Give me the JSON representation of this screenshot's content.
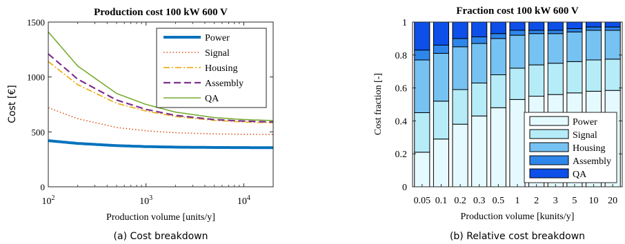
{
  "chart_data": [
    {
      "type": "line",
      "title": "Production cost 100 kW 600 V",
      "xlabel": "Production volume [units/y]",
      "ylabel": "Cost [€]",
      "xscale": "log",
      "xlim": [
        100,
        20000
      ],
      "ylim": [
        0,
        1500
      ],
      "xticks": [
        100,
        1000,
        10000
      ],
      "xtick_labels": [
        {
          "base": "10",
          "exp": "2"
        },
        {
          "base": "10",
          "exp": "3"
        },
        {
          "base": "10",
          "exp": "4"
        }
      ],
      "yticks": [
        0,
        500,
        1000,
        1500
      ],
      "ytick_labels": [
        "0",
        "500",
        "1000",
        "1500"
      ],
      "legend_position": "top-right",
      "caption": "(a) Cost breakdown",
      "series": [
        {
          "name": "Power",
          "color": "#0072BD",
          "style": "solid-thick",
          "x": [
            100,
            200,
            500,
            1000,
            2000,
            5000,
            10000,
            20000
          ],
          "y": [
            420,
            395,
            375,
            366,
            361,
            358,
            357,
            356
          ]
        },
        {
          "name": "Signal",
          "color": "#D95319",
          "style": "dotted",
          "x": [
            100,
            200,
            500,
            1000,
            2000,
            5000,
            10000,
            20000
          ],
          "y": [
            720,
            620,
            540,
            510,
            492,
            482,
            478,
            476
          ]
        },
        {
          "name": "Housing",
          "color": "#EDB120",
          "style": "dashdot",
          "x": [
            100,
            200,
            500,
            1000,
            2000,
            5000,
            10000,
            20000
          ],
          "y": [
            1140,
            930,
            760,
            690,
            640,
            605,
            590,
            583
          ]
        },
        {
          "name": "Assembly",
          "color": "#7E2F8E",
          "style": "dashed",
          "x": [
            100,
            200,
            500,
            1000,
            2000,
            5000,
            10000,
            20000
          ],
          "y": [
            1210,
            980,
            790,
            705,
            650,
            612,
            598,
            590
          ]
        },
        {
          "name": "QA",
          "color": "#77AC30",
          "style": "solid",
          "x": [
            100,
            200,
            500,
            1000,
            2000,
            5000,
            10000,
            20000
          ],
          "y": [
            1410,
            1100,
            850,
            750,
            680,
            630,
            612,
            603
          ]
        }
      ]
    },
    {
      "type": "bar",
      "stacked": true,
      "title": "Fraction cost 100 kW 600 V",
      "xlabel": "Production volume [kunits/y]",
      "ylabel": "Cost fraction [-]",
      "ylim": [
        0,
        1
      ],
      "yticks": [
        0,
        0.2,
        0.4,
        0.6,
        0.8,
        1
      ],
      "ytick_labels": [
        "0",
        "0.2",
        "0.4",
        "0.6",
        "0.8",
        "1"
      ],
      "legend_position": "bottom-right",
      "caption": "(b) Relative cost breakdown",
      "categories": [
        "0.05",
        "0.1",
        "0.2",
        "0.3",
        "0.5",
        "1",
        "2",
        "3",
        "5",
        "10",
        "20"
      ],
      "series": [
        {
          "name": "Power",
          "color": "#E5FAFF",
          "values": [
            0.21,
            0.29,
            0.38,
            0.43,
            0.48,
            0.53,
            0.55,
            0.56,
            0.57,
            0.58,
            0.585
          ]
        },
        {
          "name": "Signal",
          "color": "#B5ECF8",
          "values": [
            0.24,
            0.23,
            0.21,
            0.2,
            0.2,
            0.19,
            0.19,
            0.19,
            0.19,
            0.19,
            0.19
          ]
        },
        {
          "name": "Housing",
          "color": "#76C2F2",
          "values": [
            0.32,
            0.29,
            0.26,
            0.24,
            0.22,
            0.2,
            0.19,
            0.18,
            0.18,
            0.18,
            0.175
          ]
        },
        {
          "name": "Assembly",
          "color": "#2E86EA",
          "values": [
            0.06,
            0.05,
            0.05,
            0.04,
            0.03,
            0.03,
            0.02,
            0.02,
            0.02,
            0.02,
            0.02
          ]
        },
        {
          "name": "QA",
          "color": "#0D4FE8",
          "values": [
            0.17,
            0.14,
            0.1,
            0.09,
            0.07,
            0.05,
            0.05,
            0.05,
            0.04,
            0.03,
            0.03
          ]
        }
      ]
    }
  ]
}
